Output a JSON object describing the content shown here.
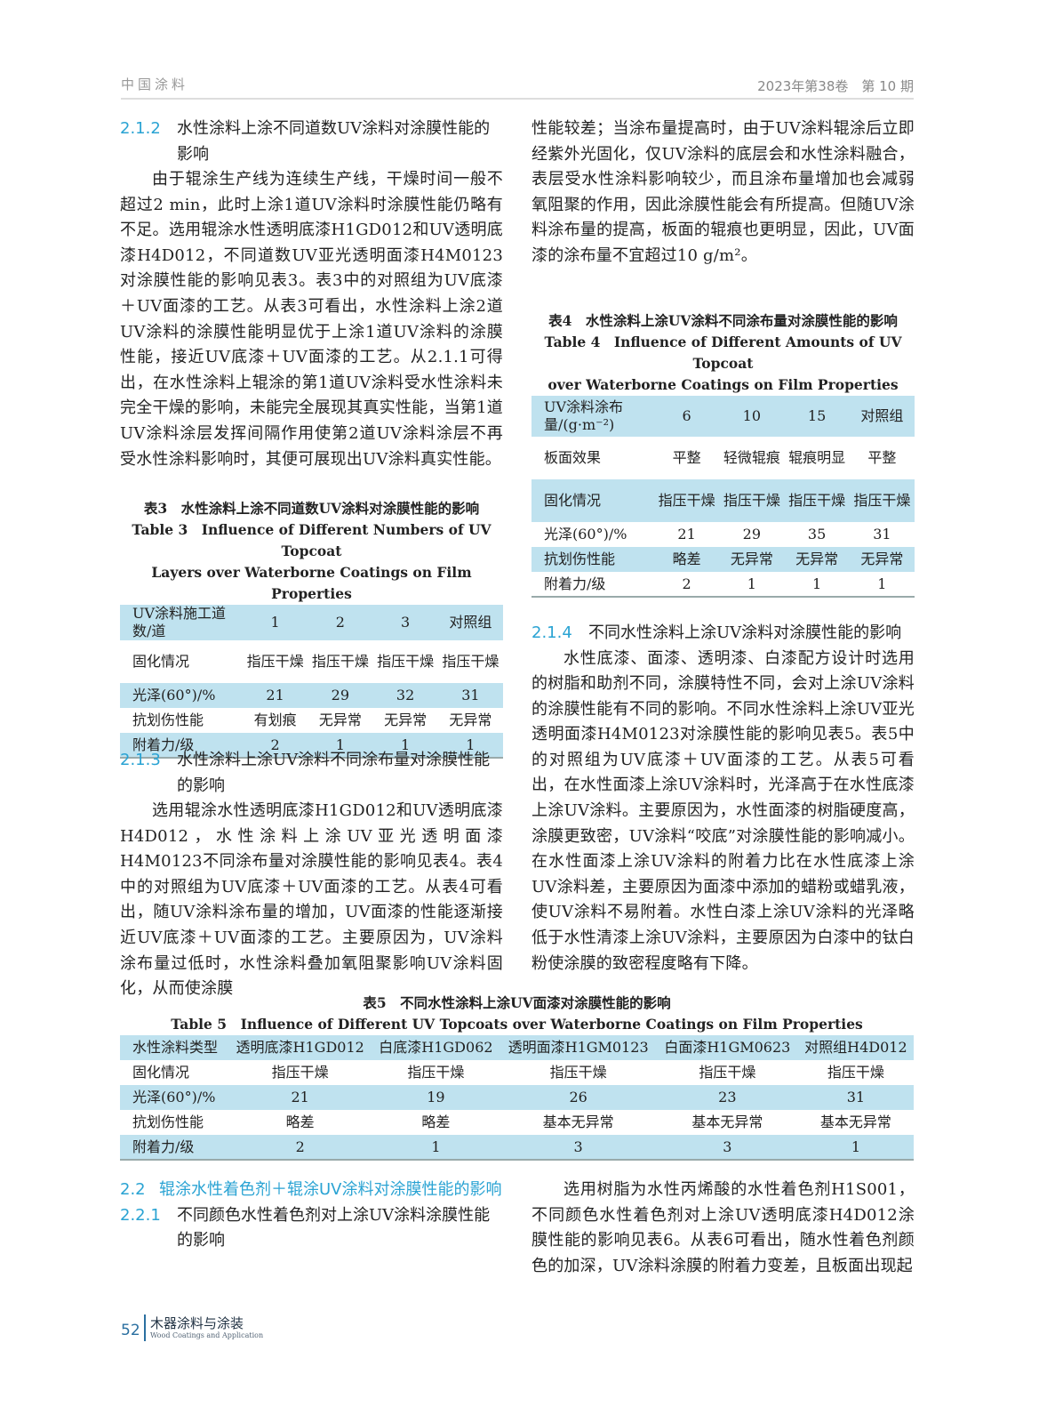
{
  "header": {
    "journal": "中国涂料",
    "issue": "2023年第38卷　第 10 期"
  },
  "sec_2_1_2": {
    "num": "2.1.2",
    "title": "水性涂料上涂不同道数UV涂料对涂膜性能的影响",
    "body": "由于辊涂生产线为连续生产线，干燥时间一般不超过2 min，此时上涂1道UV涂料时涂膜性能仍略有不足。选用辊涂水性透明底漆H1GD012和UV透明底漆H4D012，不同道数UV亚光透明面漆H4M0123对涂膜性能的影响见表3。表3中的对照组为UV底漆＋UV面漆的工艺。从表3可看出，水性涂料上涂2道UV涂料的涂膜性能明显优于上涂1道UV涂料的涂膜性能，接近UV底漆＋UV面漆的工艺。从2.1.1可得出，在水性涂料上辊涂的第1道UV涂料受水性涂料未完全干燥的影响，未能完全展现其真实性能，当第1道UV涂料涂层发挥间隔作用使第2道UV涂料涂层不再受水性涂料影响时，其便可展现出UV涂料真实性能。"
  },
  "table3": {
    "caption_cn": "表3　水性涂料上涂不同道数UV涂料对涂膜性能的影响",
    "caption_en1": "Table 3　Influence of Different Numbers of UV Topcoat",
    "caption_en2": "Layers over Waterborne Coatings on Film Properties",
    "rows": [
      [
        "UV涂料施工道数/道",
        "1",
        "2",
        "3",
        "对照组"
      ],
      [
        "固化情况",
        "指压干燥",
        "指压干燥",
        "指压干燥",
        "指压干燥"
      ],
      [
        "光泽(60°)/%",
        "21",
        "29",
        "32",
        "31"
      ],
      [
        "抗划伤性能",
        "有划痕",
        "无异常",
        "无异常",
        "无异常"
      ],
      [
        "附着力/级",
        "2",
        "1",
        "1",
        "1"
      ]
    ]
  },
  "sec_2_1_3": {
    "num": "2.1.3",
    "title": "水性涂料上涂UV涂料不同涂布量对涂膜性能的影响",
    "body_left": "选用辊涂水性透明底漆H1GD012和UV透明底漆H4D012，水性涂料上涂UV亚光透明面漆H4M0123不同涂布量对涂膜性能的影响见表4。表4中的对照组为UV底漆＋UV面漆的工艺。从表4可看出，随UV涂料涂布量的增加，UV面漆的性能逐渐接近UV底漆＋UV面漆的工艺。主要原因为，UV涂料涂布量过低时，水性涂料叠加氧阻聚影响UV涂料固化，从而使涂膜",
    "body_right": "性能较差；当涂布量提高时，由于UV涂料辊涂后立即经紫外光固化，仅UV涂料的底层会和水性涂料融合，表层受水性涂料影响较少，而且涂布量增加也会减弱氧阻聚的作用，因此涂膜性能会有所提高。但随UV涂料涂布量的提高，板面的辊痕也更明显，因此，UV面漆的涂布量不宜超过10 g/m²。"
  },
  "table4": {
    "caption_cn": "表4　水性涂料上涂UV涂料不同涂布量对涂膜性能的影响",
    "caption_en1": "Table 4　Influence of Different Amounts of UV Topcoat",
    "caption_en2": "over Waterborne Coatings on Film Properties",
    "rows": [
      [
        "UV涂料涂布量/(g·m⁻²)",
        "6",
        "10",
        "15",
        "对照组"
      ],
      [
        "板面效果",
        "平整",
        "轻微辊痕",
        "辊痕明显",
        "平整"
      ],
      [
        "固化情况",
        "指压干燥",
        "指压干燥",
        "指压干燥",
        "指压干燥"
      ],
      [
        "光泽(60°)/%",
        "21",
        "29",
        "35",
        "31"
      ],
      [
        "抗划伤性能",
        "略差",
        "无异常",
        "无异常",
        "无异常"
      ],
      [
        "附着力/级",
        "2",
        "1",
        "1",
        "1"
      ]
    ]
  },
  "sec_2_1_4": {
    "num": "2.1.4",
    "title": "不同水性涂料上涂UV涂料对涂膜性能的影响",
    "body": "水性底漆、面漆、透明漆、白漆配方设计时选用的树脂和助剂不同，涂膜特性不同，会对上涂UV涂料的涂膜性能有不同的影响。不同水性涂料上涂UV亚光透明面漆H4M0123对涂膜性能的影响见表5。表5中的对照组为UV底漆＋UV面漆的工艺。从表5可看出，在水性面漆上涂UV涂料时，光泽高于在水性底漆上涂UV涂料。主要原因为，水性面漆的树脂硬度高，涂膜更致密，UV涂料“咬底”对涂膜性能的影响减小。在水性面漆上涂UV涂料的附着力比在水性底漆上涂UV涂料差，主要原因为面漆中添加的蜡粉或蜡乳液，使UV涂料不易附着。水性白漆上涂UV涂料的光泽略低于水性清漆上涂UV涂料，主要原因为白漆中的钛白粉使涂膜的致密程度略有下降。"
  },
  "table5": {
    "caption_cn": "表5　不同水性涂料上涂UV面漆对涂膜性能的影响",
    "caption_en": "Table 5　Influence of Different UV Topcoats over Waterborne Coatings on Film Properties",
    "rows": [
      [
        "水性涂料类型",
        "透明底漆H1GD012",
        "白底漆H1GD062",
        "透明面漆H1GM0123",
        "白面漆H1GM0623",
        "对照组H4D012"
      ],
      [
        "固化情况",
        "指压干燥",
        "指压干燥",
        "指压干燥",
        "指压干燥",
        "指压干燥"
      ],
      [
        "光泽(60°)/%",
        "21",
        "19",
        "26",
        "23",
        "31"
      ],
      [
        "抗划伤性能",
        "略差",
        "略差",
        "基本无异常",
        "基本无异常",
        "基本无异常"
      ],
      [
        "附着力/级",
        "2",
        "1",
        "3",
        "3",
        "1"
      ]
    ]
  },
  "sec_2_2": {
    "num": "2.2",
    "title": "辊涂水性着色剂＋辊涂UV涂料对涂膜性能的影响"
  },
  "sec_2_2_1": {
    "num": "2.2.1",
    "title": "不同颜色水性着色剂对上涂UV涂料涂膜性能的影响",
    "body": "选用树脂为水性丙烯酸的水性着色剂H1S001，不同颜色水性着色剂对上涂UV透明底漆H4D012涂膜性能的影响见表6。从表6可看出，随水性着色剂颜色的加深，UV涂料涂膜的附着力变差，且板面出现起"
  },
  "footer": {
    "page": "52",
    "journal_cn": "木器涂料与涂装",
    "journal_en": "Wood Coatings and Application"
  },
  "colors": {
    "accent": "#2aa3d3",
    "table_band": "#bfe2ef"
  }
}
